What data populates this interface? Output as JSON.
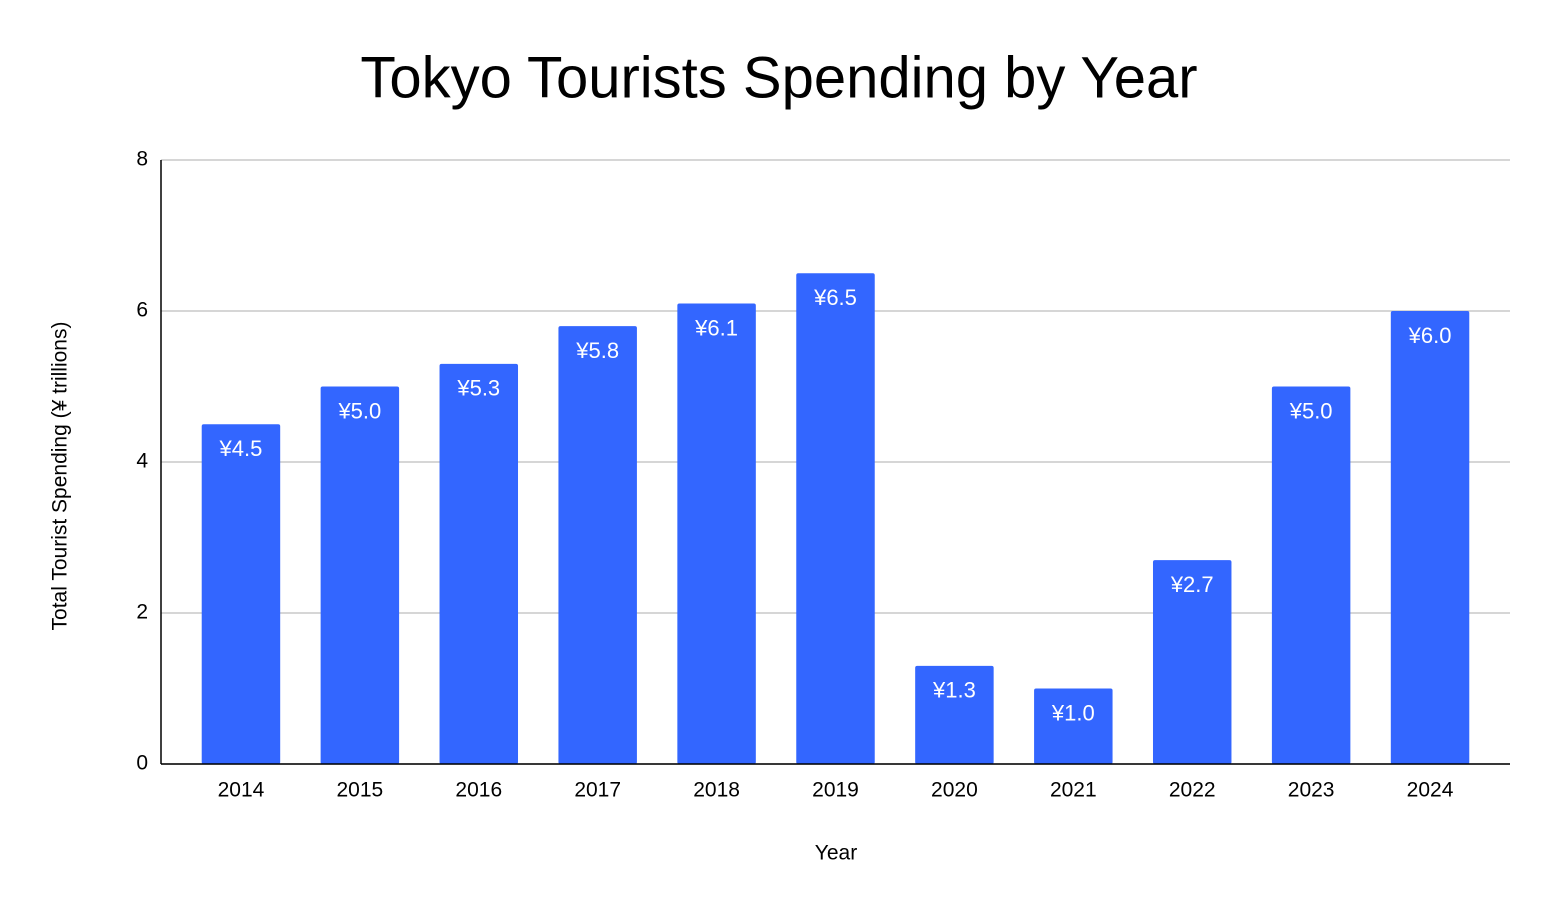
{
  "chart_data": {
    "type": "bar",
    "title": "Tokyo Tourists Spending by Year",
    "x_label": "Year",
    "y_label": "Total Tourist Spending (¥ trillions)",
    "categories": [
      "2014",
      "2015",
      "2016",
      "2017",
      "2018",
      "2019",
      "2020",
      "2021",
      "2022",
      "2023",
      "2024"
    ],
    "values": [
      4.5,
      5.0,
      5.3,
      5.8,
      6.1,
      6.5,
      1.3,
      1.0,
      2.7,
      5.0,
      6.0
    ],
    "value_labels": [
      "¥4.5",
      "¥5.0",
      "¥5.3",
      "¥5.8",
      "¥6.1",
      "¥6.5",
      "¥1.3",
      "¥1.0",
      "¥2.7",
      "¥5.0",
      "¥6.0"
    ],
    "color": "#3366ff",
    "ylim": [
      0,
      8
    ],
    "yticks": [
      0,
      2,
      4,
      6,
      8
    ],
    "grid": true
  }
}
